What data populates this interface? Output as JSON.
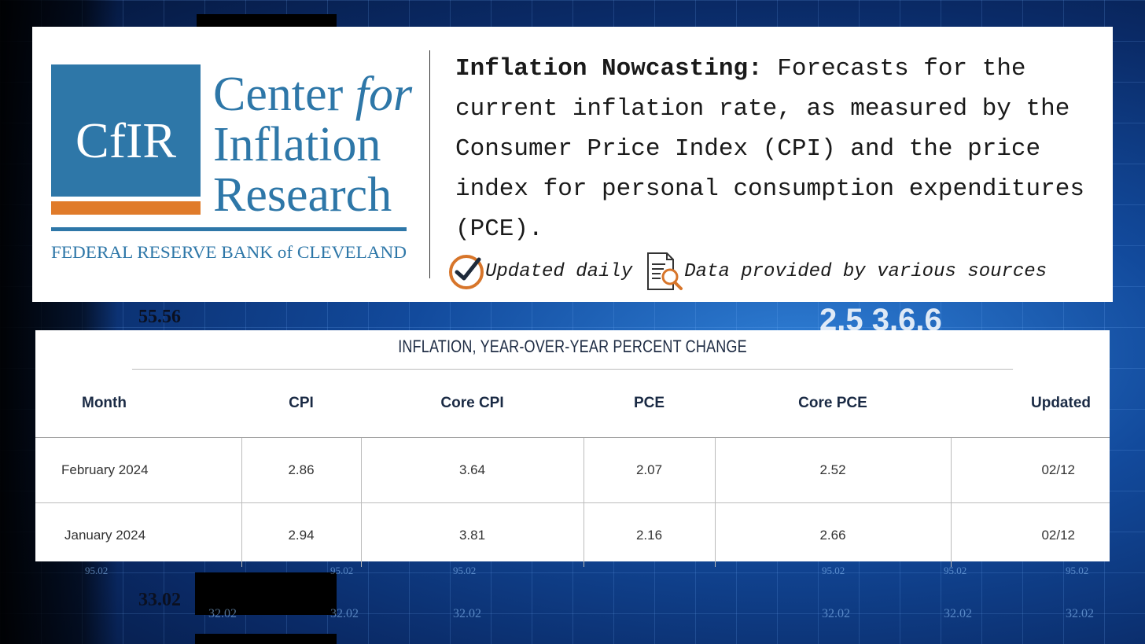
{
  "header": {
    "logo": {
      "monogram": "CfIR",
      "name_line1": "Center",
      "name_line1_italic": "for",
      "name_line2": "Inflation",
      "name_line3": "Research",
      "subtitle": "FEDERAL RESERVE BANK of CLEVELAND",
      "colors": {
        "primary": "#2e77a8",
        "accent": "#e07b2a"
      }
    },
    "description_lead": "Inflation Nowcasting:",
    "description_rest": " Forecasts for the current inflation rate, as measured by the Consumer Price Index (CPI) and the price index for personal consumption expenditures (PCE).",
    "meta": {
      "updated_label": "Updated daily",
      "sources_label": "Data provided by various sources",
      "icons": [
        "clock-check-icon",
        "document-search-icon"
      ]
    }
  },
  "table": {
    "title": "INFLATION, YEAR-OVER-YEAR PERCENT CHANGE",
    "columns": [
      "Month",
      "CPI",
      "Core CPI",
      "PCE",
      "Core PCE",
      "Updated"
    ],
    "rows": [
      [
        "February 2024",
        "2.86",
        "3.64",
        "2.07",
        "2.52",
        "02/12"
      ],
      [
        "January 2024",
        "2.94",
        "3.81",
        "2.16",
        "2.66",
        "02/12"
      ]
    ]
  }
}
